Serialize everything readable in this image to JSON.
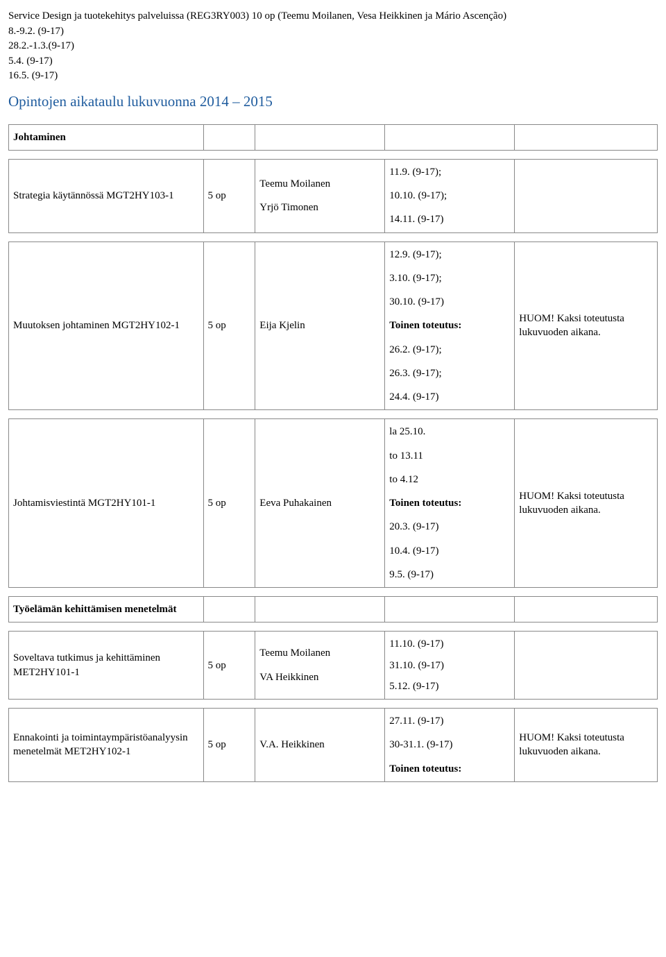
{
  "intro": {
    "line1": "Service Design ja tuotekehitys palveluissa (REG3RY003) 10 op (Teemu Moilanen, Vesa Heikkinen ja Mário Ascenção)",
    "line2": "8.-9.2. (9-17)",
    "line3": "28.2.-1.3.(9-17)",
    "line4": "5.4. (9-17)",
    "line5": "16.5. (9-17)"
  },
  "heading": "Opintojen aikataulu lukuvuonna 2014 – 2015",
  "section1": {
    "title": "Johtaminen"
  },
  "row1": {
    "course": "Strategia käytännössä MGT2HY103-1",
    "credits": "5 op",
    "teacher1": "Teemu Moilanen",
    "teacher2": "Yrjö Timonen",
    "d1": "11.9. (9-17);",
    "d2": "10.10. (9-17);",
    "d3": "14.11. (9-17)"
  },
  "row2": {
    "course": "Muutoksen johtaminen MGT2HY102-1",
    "credits": "5 op",
    "teacher": "Eija Kjelin",
    "d1": "12.9. (9-17);",
    "d2": "3.10. (9-17);",
    "d3": "30.10. (9-17)",
    "sub": "Toinen toteutus:",
    "d4": "26.2. (9-17);",
    "d5": "26.3. (9-17);",
    "d6": "24.4. (9-17)",
    "note": "HUOM! Kaksi toteutusta lukuvuoden aikana."
  },
  "row3": {
    "course": "Johtamisviestintä MGT2HY101-1",
    "credits": "5 op",
    "teacher": "Eeva Puhakainen",
    "d1": "la 25.10.",
    "d2": "to 13.11",
    "d3": "to 4.12",
    "sub": "Toinen toteutus:",
    "d4": "20.3. (9-17)",
    "d5": "10.4. (9-17)",
    "d6": "9.5. (9-17)",
    "note": "HUOM! Kaksi toteutusta lukuvuoden aikana."
  },
  "section2": {
    "title": "Työelämän kehittämisen menetelmät"
  },
  "row4": {
    "course": "Soveltava tutkimus ja kehittäminen MET2HY101-1",
    "credits": "5 op",
    "teacher1": "Teemu Moilanen",
    "teacher2": "VA Heikkinen",
    "d1": "11.10. (9-17)",
    "d2": "31.10. (9-17)",
    "d3": "5.12. (9-17)"
  },
  "row5": {
    "course": "Ennakointi ja toimintaympäristöanalyysin menetelmät MET2HY102-1",
    "credits": "5 op",
    "teacher": "V.A. Heikkinen",
    "d1": "27.11. (9-17)",
    "d2": "30-31.1. (9-17)",
    "sub": "Toinen toteutus:",
    "note": "HUOM! Kaksi toteutusta lukuvuoden aikana."
  }
}
